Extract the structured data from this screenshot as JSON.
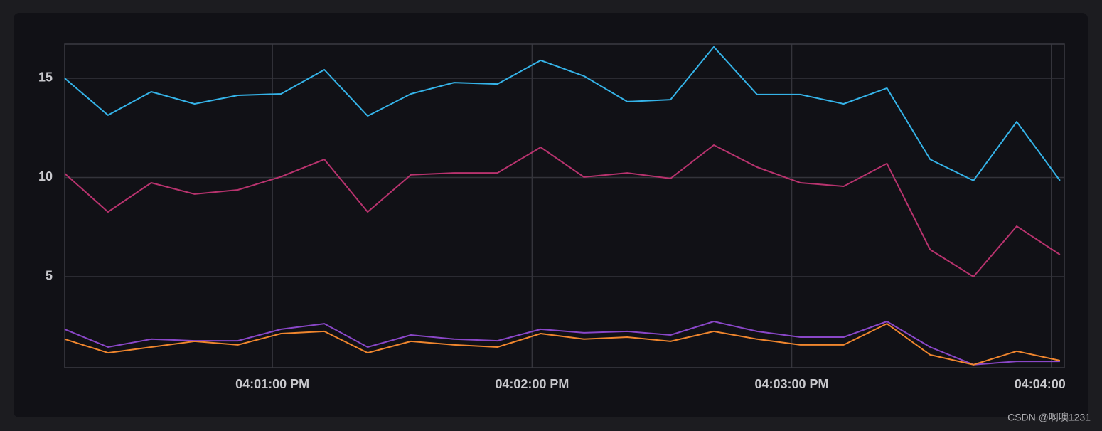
{
  "chart_data": {
    "type": "line",
    "x": [
      "04:00:12 PM",
      "04:00:22 PM",
      "04:00:32 PM",
      "04:00:42 PM",
      "04:00:52 PM",
      "04:01:02 PM",
      "04:01:12 PM",
      "04:01:22 PM",
      "04:01:32 PM",
      "04:01:42 PM",
      "04:01:52 PM",
      "04:02:02 PM",
      "04:02:12 PM",
      "04:02:22 PM",
      "04:02:32 PM",
      "04:02:42 PM",
      "04:02:52 PM",
      "04:03:02 PM",
      "04:03:12 PM",
      "04:03:22 PM",
      "04:03:32 PM",
      "04:03:42 PM",
      "04:03:52 PM",
      "04:04:02 PM"
    ],
    "series": [
      {
        "color": "#35b3e8",
        "values": [
          15,
          13.14,
          14.32,
          13.71,
          14.14,
          14.21,
          15.43,
          13.1,
          14.21,
          14.78,
          14.71,
          15.9,
          15.11,
          13.82,
          13.92,
          16.58,
          14.18,
          14.18,
          13.71,
          14.5,
          10.91,
          9.84,
          12.81,
          9.84
        ]
      },
      {
        "color": "#b8336e",
        "values": [
          10.2,
          8.26,
          9.73,
          9.16,
          9.37,
          10.04,
          10.91,
          8.26,
          10.13,
          10.23,
          10.23,
          11.52,
          10.02,
          10.23,
          9.95,
          11.63,
          10.52,
          9.73,
          9.55,
          10.7,
          6.36,
          5,
          7.54,
          6.11
        ]
      },
      {
        "color": "#8a47c8",
        "values": [
          2.35,
          1.45,
          1.85,
          1.77,
          1.77,
          2.35,
          2.63,
          1.45,
          2.06,
          1.85,
          1.77,
          2.35,
          2.17,
          2.24,
          2.06,
          2.74,
          2.24,
          1.95,
          1.95,
          2.74,
          1.45,
          0.56,
          0.73,
          0.73
        ]
      },
      {
        "color": "#f0862e",
        "values": [
          1.85,
          1.16,
          1.45,
          1.74,
          1.56,
          2.13,
          2.24,
          1.16,
          1.74,
          1.56,
          1.45,
          2.13,
          1.85,
          1.95,
          1.74,
          2.24,
          1.85,
          1.56,
          1.56,
          2.63,
          1.06,
          0.56,
          1.24,
          0.77
        ]
      }
    ],
    "xlim": [
      "04:00:12 PM",
      "04:04:03 PM"
    ],
    "xticks": [
      "04:01:00 PM",
      "04:02:00 PM",
      "04:03:00 PM",
      "04:04:00 PM"
    ],
    "ylim": [
      0.41,
      16.72
    ],
    "yticks": [
      5,
      10,
      15
    ],
    "grid": true
  },
  "watermark": "CSDN @啊噢1231"
}
